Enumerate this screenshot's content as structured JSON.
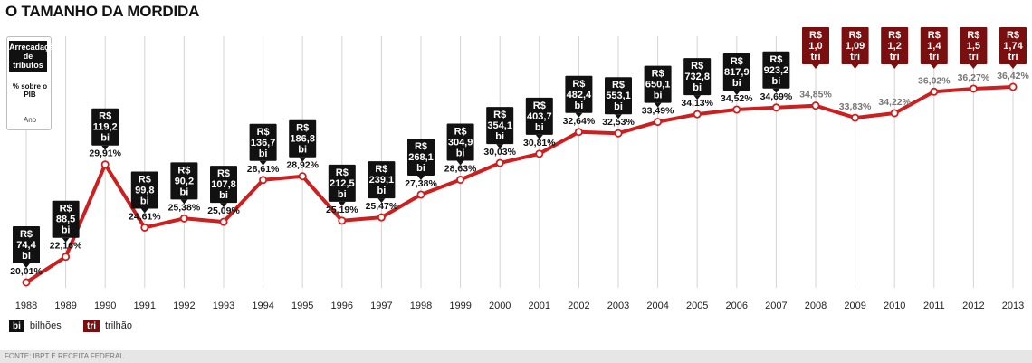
{
  "title": "O TAMANHO DA MORDIDA",
  "legend": {
    "tag_lines": [
      "Arrecadação",
      "de",
      "tributos"
    ],
    "pct_label": "% sobre o PIB",
    "year_label": "Ano"
  },
  "key": {
    "bi_symbol": "bi",
    "bi_label": "bilhões",
    "tri_symbol": "tri",
    "tri_label": "trilhão"
  },
  "source": "FONTE: IBPT E RECEITA FEDERAL",
  "colors": {
    "line": "#cc1f1f",
    "billion_box": "#111111",
    "trillion_box": "#7a0f0f",
    "grid": "#d4d4d4"
  },
  "chart_data": {
    "type": "line",
    "x": [
      "1988",
      "1989",
      "1990",
      "1991",
      "1992",
      "1993",
      "1994",
      "1995",
      "1996",
      "1997",
      "1998",
      "1999",
      "2000",
      "2001",
      "2002",
      "2003",
      "2004",
      "2005",
      "2006",
      "2007",
      "2008",
      "2009",
      "2010",
      "2011",
      "2012",
      "2013"
    ],
    "pct_labels": [
      "20,01%",
      "22,16%",
      "29,91%",
      "24,61%",
      "25,38%",
      "25,09%",
      "28,61%",
      "28,92%",
      "25,19%",
      "25,47%",
      "27,38%",
      "28,63%",
      "30,03%",
      "30,81%",
      "32,64%",
      "32,53%",
      "33,49%",
      "34,13%",
      "34,52%",
      "34,69%",
      "34,85%",
      "33,83%",
      "34,22%",
      "36,02%",
      "36,27%",
      "36,42%"
    ],
    "series": [
      {
        "values": [
          20.01,
          22.16,
          29.91,
          24.61,
          25.38,
          25.09,
          28.61,
          28.92,
          25.19,
          25.47,
          27.38,
          28.63,
          30.03,
          30.81,
          32.64,
          32.53,
          33.49,
          34.13,
          34.52,
          34.69,
          34.85,
          33.83,
          34.22,
          36.02,
          36.27,
          36.42
        ]
      }
    ],
    "revenue": [
      {
        "lines": [
          "R$",
          "74,4",
          "bi"
        ],
        "unit": "bi"
      },
      {
        "lines": [
          "R$",
          "88,5",
          "bi"
        ],
        "unit": "bi"
      },
      {
        "lines": [
          "R$",
          "119,2",
          "bi"
        ],
        "unit": "bi"
      },
      {
        "lines": [
          "R$",
          "99,8",
          "bi"
        ],
        "unit": "bi"
      },
      {
        "lines": [
          "R$",
          "90,2",
          "bi"
        ],
        "unit": "bi"
      },
      {
        "lines": [
          "R$",
          "107,8",
          "bi"
        ],
        "unit": "bi"
      },
      {
        "lines": [
          "R$",
          "136,7",
          "bi"
        ],
        "unit": "bi"
      },
      {
        "lines": [
          "R$",
          "186,8",
          "bi"
        ],
        "unit": "bi"
      },
      {
        "lines": [
          "R$",
          "212,5",
          "bi"
        ],
        "unit": "bi"
      },
      {
        "lines": [
          "R$",
          "239,1",
          "bi"
        ],
        "unit": "bi"
      },
      {
        "lines": [
          "R$",
          "268,1",
          "bi"
        ],
        "unit": "bi"
      },
      {
        "lines": [
          "R$",
          "304,9",
          "bi"
        ],
        "unit": "bi"
      },
      {
        "lines": [
          "R$",
          "354,1",
          "bi"
        ],
        "unit": "bi"
      },
      {
        "lines": [
          "R$",
          "403,7",
          "bi"
        ],
        "unit": "bi"
      },
      {
        "lines": [
          "R$",
          "482,4",
          "bi"
        ],
        "unit": "bi"
      },
      {
        "lines": [
          "R$",
          "553,1",
          "bi"
        ],
        "unit": "bi"
      },
      {
        "lines": [
          "R$",
          "650,1",
          "bi"
        ],
        "unit": "bi"
      },
      {
        "lines": [
          "R$",
          "732,8",
          "bi"
        ],
        "unit": "bi"
      },
      {
        "lines": [
          "R$",
          "817,9",
          "bi"
        ],
        "unit": "bi"
      },
      {
        "lines": [
          "R$",
          "923,2",
          "bi"
        ],
        "unit": "bi"
      },
      {
        "lines": [
          "R$",
          "1,0",
          "tri"
        ],
        "unit": "tri"
      },
      {
        "lines": [
          "R$",
          "1,09",
          "tri"
        ],
        "unit": "tri"
      },
      {
        "lines": [
          "R$",
          "1,2",
          "tri"
        ],
        "unit": "tri"
      },
      {
        "lines": [
          "R$",
          "1,4",
          "tri"
        ],
        "unit": "tri"
      },
      {
        "lines": [
          "R$",
          "1,5",
          "tri"
        ],
        "unit": "tri"
      },
      {
        "lines": [
          "R$",
          "1,74",
          "tri"
        ],
        "unit": "tri"
      }
    ]
  }
}
